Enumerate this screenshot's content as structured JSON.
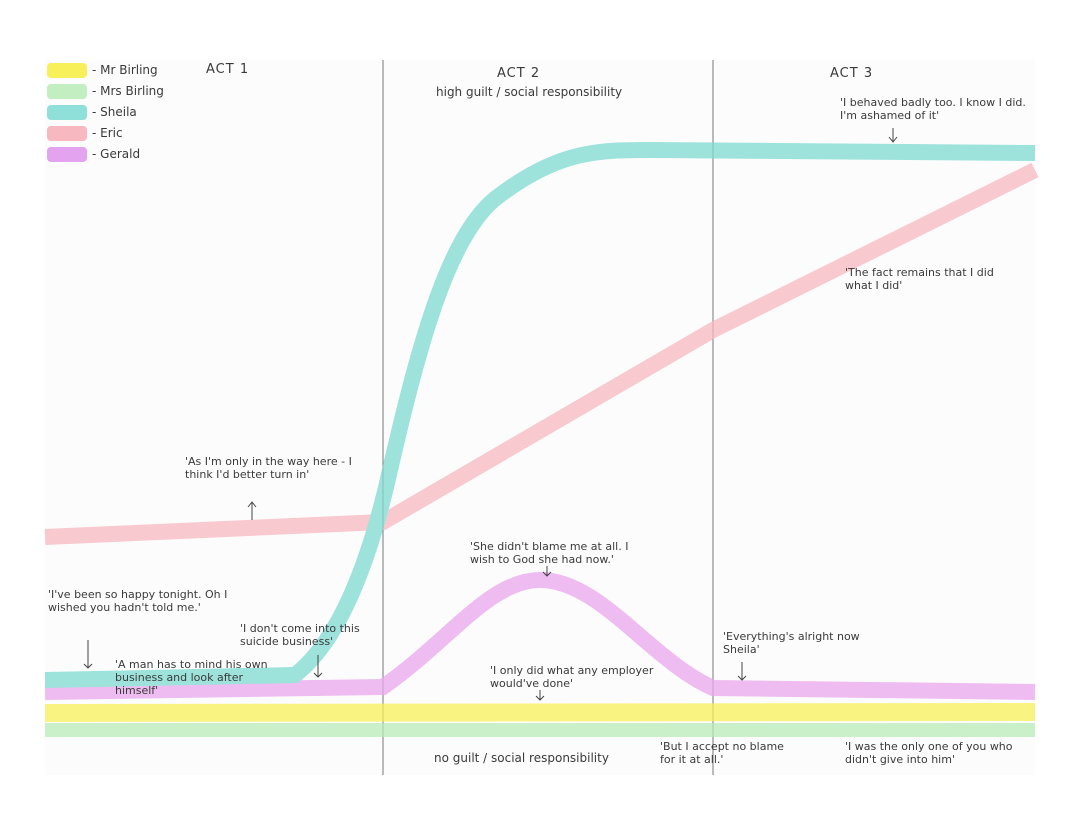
{
  "legend": {
    "items": [
      "- Mr Birling",
      "- Mrs Birling",
      "- Sheila",
      "- Eric",
      "- Gerald"
    ]
  },
  "acts": [
    "ACT 1",
    "ACT 2",
    "ACT 3"
  ],
  "axis": {
    "top": "high guilt / social responsibility",
    "bottom": "no guilt / social responsibility"
  },
  "quotes": [
    "'I behaved badly too. I know I did. I'm ashamed of it'",
    "'The fact remains that I did what I did'",
    "'As I'm only in the way here - I think I'd better turn in'",
    "'She didn't blame me at all. I wish to God she had now.'",
    "'I've been so happy tonight. Oh I wished you hadn't told me.'",
    "'I don't come into this suicide business'",
    "'A man has to mind his own business and look after himself'",
    "'I only did what any employer would've done'",
    "'Everything's alright now Sheila'",
    "'But I accept no blame for it at all.'",
    "'I was the only one of you who didn't give into him'"
  ]
}
